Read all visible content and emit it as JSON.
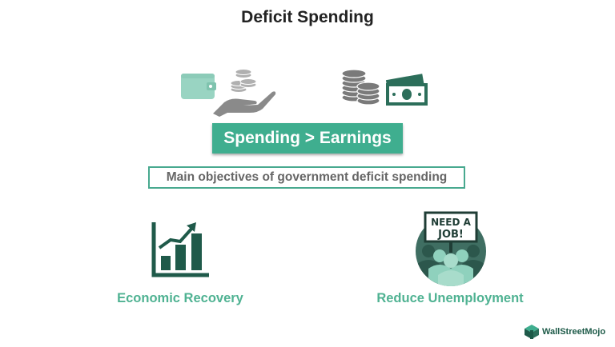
{
  "title": "Deficit Spending",
  "formula_label": "Spending > Earnings",
  "objectives_label": "Main objectives of government deficit spending",
  "objectives": [
    {
      "label": "Economic Recovery",
      "icon": "growth-chart-icon"
    },
    {
      "label": "Reduce Unemployment",
      "icon": "job-seekers-icon"
    }
  ],
  "sign_text": {
    "line1": "NEED A",
    "line2": "JOB!"
  },
  "brand": "WallStreetMojo",
  "colors": {
    "accent": "#3fae8f",
    "light_accent": "#99d4c2",
    "dark_green": "#1f5a4a",
    "grey": "#808080",
    "label_green": "#4fb292"
  }
}
